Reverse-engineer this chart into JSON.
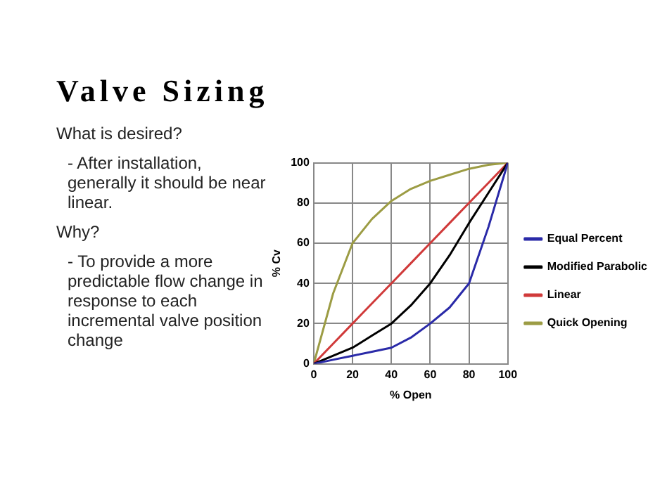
{
  "chart_data": {
    "type": "line",
    "title": "Valve Sizing",
    "xlabel": "% Open",
    "ylabel": "% Cv",
    "x": [
      0,
      10,
      20,
      30,
      40,
      50,
      60,
      70,
      80,
      90,
      100
    ],
    "series": [
      {
        "name": "Equal Percent",
        "color": "#2a2aa8",
        "values": [
          0,
          2,
          4,
          6,
          8,
          13,
          20,
          28,
          40,
          68,
          100
        ]
      },
      {
        "name": "Modified Parabolic",
        "color": "#000000",
        "values": [
          0,
          4,
          8,
          14,
          20,
          29,
          40,
          54,
          70,
          85,
          100
        ]
      },
      {
        "name": "Linear",
        "color": "#d03a3a",
        "values": [
          0,
          10,
          20,
          30,
          40,
          50,
          60,
          70,
          80,
          90,
          100
        ]
      },
      {
        "name": "Quick Opening",
        "color": "#9c9c44",
        "values": [
          0,
          35,
          60,
          72,
          81,
          87,
          91,
          94,
          97,
          99,
          100
        ]
      }
    ],
    "xlim": [
      0,
      100
    ],
    "xticks": [
      0,
      20,
      40,
      60,
      80,
      100
    ],
    "ylim": [
      0,
      100
    ],
    "yticks": [
      0,
      20,
      40,
      60,
      80,
      100
    ],
    "grid": true,
    "legend": "right",
    "marker": "none",
    "line_style": "solid",
    "annotations": [
      "What is desired?",
      "- After installation, generally it should be near linear.",
      "Why?",
      "- To provide a more predictable flow change in response to each incremental valve position change"
    ]
  }
}
